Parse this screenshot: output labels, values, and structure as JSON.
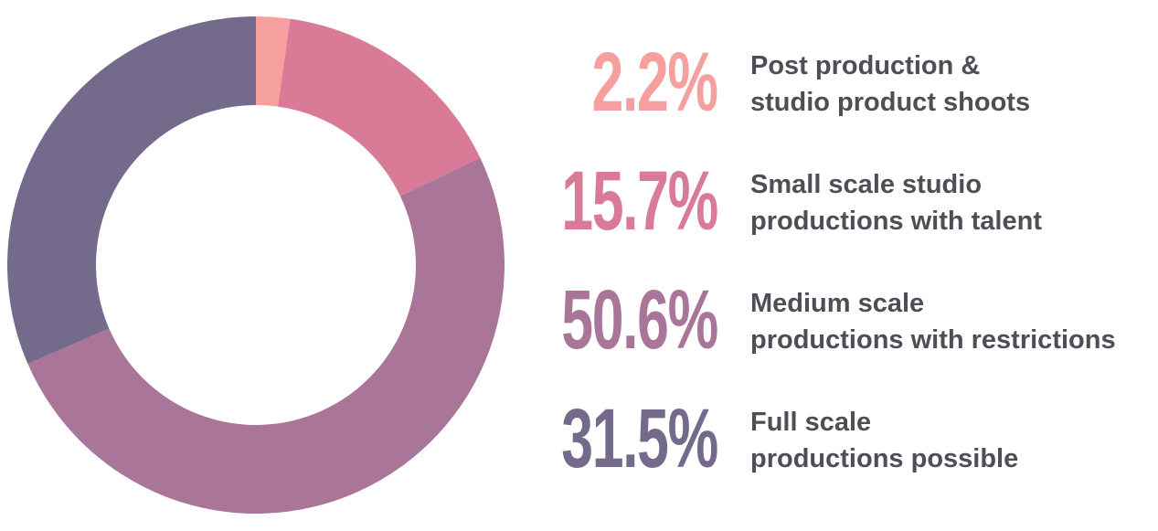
{
  "chart_data": {
    "type": "pie",
    "donut": true,
    "categories": [
      "Post production &\nstudio product shoots",
      "Small scale studio\nproductions with talent",
      "Medium scale\nproductions with restrictions",
      "Full scale\nproductions possible"
    ],
    "values": [
      2.2,
      15.7,
      50.6,
      31.5
    ],
    "value_labels": [
      "2.2%",
      "15.7%",
      "50.6%",
      "31.5%"
    ],
    "colors": [
      "#f5a09e",
      "#d97b96",
      "#a97599",
      "#736a8c"
    ]
  }
}
